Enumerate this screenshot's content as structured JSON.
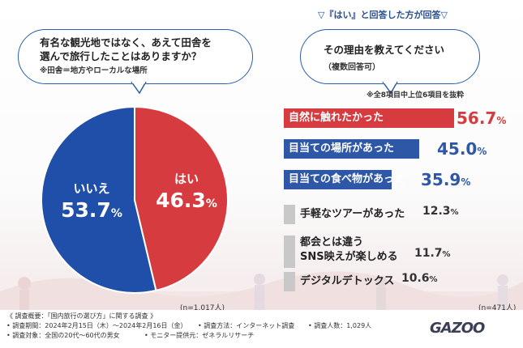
{
  "survey_question": {
    "line1": "有名な観光地ではなく、あえて田舎を",
    "line2": "選んで旅行したことはありますか？",
    "note": "※田舎＝地方やローカルな場所"
  },
  "intro": "▽『はい』と回答した方が回答▽",
  "reason_question": {
    "text": "その理由を教えてください",
    "note": "（複数回答可）"
  },
  "subnote": "※全8項目中上位6項目を抜粋",
  "colors": {
    "yes": "#d63c3f",
    "no": "#1f4fa8",
    "top": "#d63c3f",
    "mid": "#2f57a8",
    "low": "#c8c8c8"
  },
  "chart_data": [
    {
      "type": "pie",
      "title": "有名な観光地ではなく、あえて田舎を選んで旅行したことはありますか？",
      "categories": [
        "はい",
        "いいえ"
      ],
      "values": [
        46.3,
        53.7
      ],
      "value_labels": [
        "46.3",
        "53.7"
      ],
      "unit": "%",
      "sample": "(n=1,017人)"
    },
    {
      "type": "bar",
      "orientation": "horizontal",
      "title": "その理由を教えてください（複数回答可）",
      "categories": [
        "自然に触れたかった",
        "目当ての場所があった",
        "目当ての食べ物があった",
        "手軽なツアーがあった",
        "都会とは違う\nSNS映えが楽しめる",
        "デジタルデトックス"
      ],
      "category_lines": [
        [
          "自然に触れたかった"
        ],
        [
          "目当ての場所があった"
        ],
        [
          "目当ての食べ物があった"
        ],
        [
          "手軽なツアーがあった"
        ],
        [
          "都会とは違う",
          "SNS映えが楽しめる"
        ],
        [
          "デジタルデトックス"
        ]
      ],
      "values": [
        56.7,
        45.0,
        35.9,
        12.3,
        11.7,
        10.6
      ],
      "value_labels": [
        "56.7",
        "45.0",
        "35.9",
        "12.3",
        "11.7",
        "10.6"
      ],
      "unit": "%",
      "sample": "(n=471人)"
    }
  ],
  "footer": {
    "overview": "《 調査概要：「国内旅行の選び方」に関する調査 》",
    "period": "• 調査期間：2024年2月15日（木）〜2024年2月16日（金）",
    "method": "• 調査方法：インターネット調査",
    "count": "• 調査人数：1,029人",
    "target": "• 調査対象：全国の20代〜60代の男女",
    "provider": "• モニター提供元：ゼネラルリサーチ"
  },
  "logo": "GAZOO"
}
